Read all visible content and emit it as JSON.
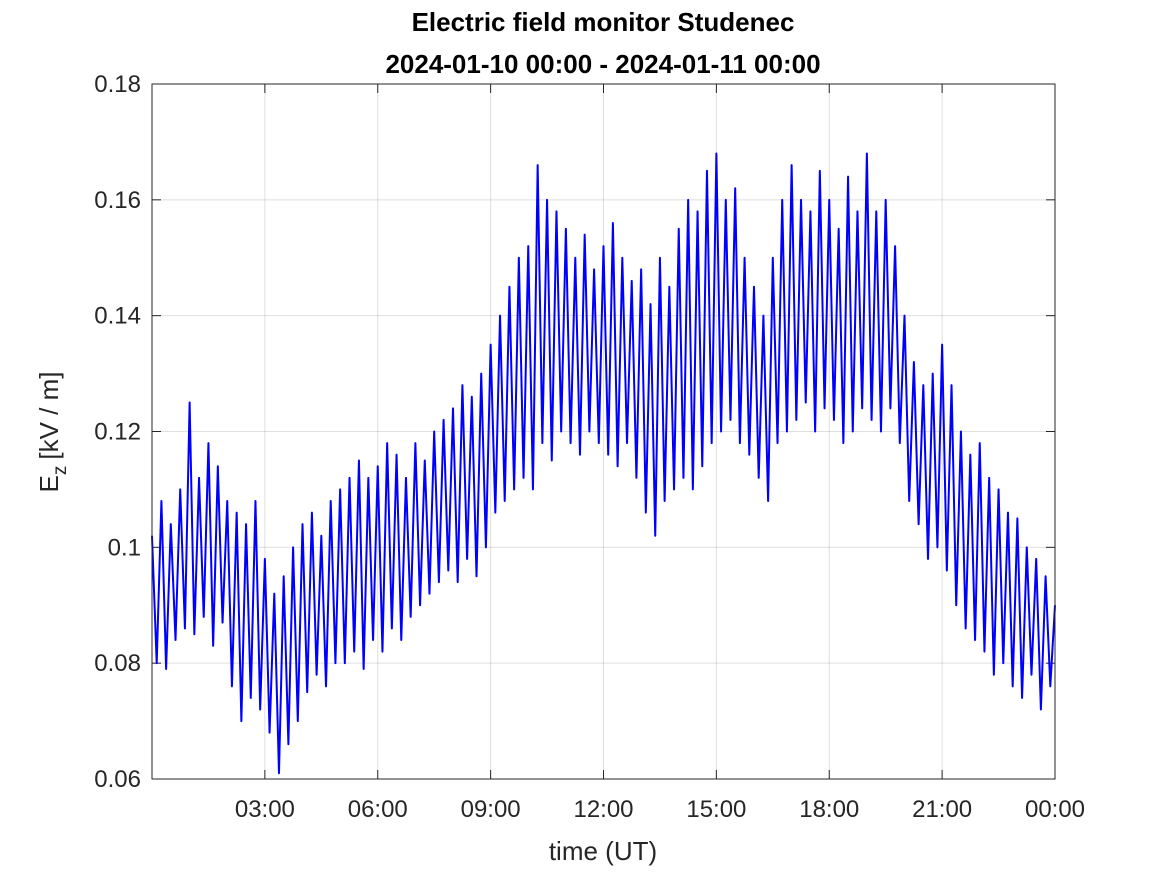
{
  "chart_data": {
    "type": "line",
    "title": [
      "Electric field monitor Studenec",
      "2024-01-10 00:00 - 2024-01-11 00:00"
    ],
    "xlabel": "time (UT)",
    "ylabel": {
      "symbol": "E",
      "subscript": "z",
      "unit": "[kV / m]"
    },
    "color": "#0000ff",
    "grid": true,
    "xlim": [
      0,
      24
    ],
    "xticks": [
      {
        "value": 3,
        "label": "03:00"
      },
      {
        "value": 6,
        "label": "06:00"
      },
      {
        "value": 9,
        "label": "09:00"
      },
      {
        "value": 12,
        "label": "12:00"
      },
      {
        "value": 15,
        "label": "15:00"
      },
      {
        "value": 18,
        "label": "18:00"
      },
      {
        "value": 21,
        "label": "21:00"
      },
      {
        "value": 24,
        "label": "00:00"
      }
    ],
    "ylim": [
      0.06,
      0.18
    ],
    "yticks": [
      0.06,
      0.08,
      0.1,
      0.12,
      0.14,
      0.16,
      0.18
    ],
    "x": [
      0,
      0.125,
      0.25,
      0.375,
      0.5,
      0.625,
      0.75,
      0.875,
      1,
      1.125,
      1.25,
      1.375,
      1.5,
      1.625,
      1.75,
      1.875,
      2,
      2.125,
      2.25,
      2.375,
      2.5,
      2.625,
      2.75,
      2.875,
      3,
      3.125,
      3.25,
      3.375,
      3.5,
      3.625,
      3.75,
      3.875,
      4,
      4.125,
      4.25,
      4.375,
      4.5,
      4.625,
      4.75,
      4.875,
      5,
      5.125,
      5.25,
      5.375,
      5.5,
      5.625,
      5.75,
      5.875,
      6,
      6.125,
      6.25,
      6.375,
      6.5,
      6.625,
      6.75,
      6.875,
      7,
      7.125,
      7.25,
      7.375,
      7.5,
      7.625,
      7.75,
      7.875,
      8,
      8.125,
      8.25,
      8.375,
      8.5,
      8.625,
      8.75,
      8.875,
      9,
      9.125,
      9.25,
      9.375,
      9.5,
      9.625,
      9.75,
      9.875,
      10,
      10.125,
      10.25,
      10.375,
      10.5,
      10.625,
      10.75,
      10.875,
      11,
      11.125,
      11.25,
      11.375,
      11.5,
      11.625,
      11.75,
      11.875,
      12,
      12.125,
      12.25,
      12.375,
      12.5,
      12.625,
      12.75,
      12.875,
      13,
      13.125,
      13.25,
      13.375,
      13.5,
      13.625,
      13.75,
      13.875,
      14,
      14.125,
      14.25,
      14.375,
      14.5,
      14.625,
      14.75,
      14.875,
      15,
      15.125,
      15.25,
      15.375,
      15.5,
      15.625,
      15.75,
      15.875,
      16,
      16.125,
      16.25,
      16.375,
      16.5,
      16.625,
      16.75,
      16.875,
      17,
      17.125,
      17.25,
      17.375,
      17.5,
      17.625,
      17.75,
      17.875,
      18,
      18.125,
      18.25,
      18.375,
      18.5,
      18.625,
      18.75,
      18.875,
      19,
      19.125,
      19.25,
      19.375,
      19.5,
      19.625,
      19.75,
      19.875,
      20,
      20.125,
      20.25,
      20.375,
      20.5,
      20.625,
      20.75,
      20.875,
      21,
      21.125,
      21.25,
      21.375,
      21.5,
      21.625,
      21.75,
      21.875,
      22,
      22.125,
      22.25,
      22.375,
      22.5,
      22.625,
      22.75,
      22.875,
      23,
      23.125,
      23.25,
      23.375,
      23.5,
      23.625,
      23.75,
      23.875,
      24
    ],
    "values": [
      0.102,
      0.08,
      0.108,
      0.079,
      0.104,
      0.084,
      0.11,
      0.086,
      0.125,
      0.085,
      0.112,
      0.088,
      0.118,
      0.083,
      0.114,
      0.087,
      0.108,
      0.076,
      0.106,
      0.07,
      0.104,
      0.074,
      0.108,
      0.072,
      0.098,
      0.068,
      0.092,
      0.061,
      0.095,
      0.066,
      0.1,
      0.07,
      0.104,
      0.075,
      0.106,
      0.078,
      0.102,
      0.076,
      0.108,
      0.08,
      0.11,
      0.08,
      0.112,
      0.082,
      0.115,
      0.079,
      0.112,
      0.084,
      0.114,
      0.082,
      0.118,
      0.086,
      0.116,
      0.084,
      0.112,
      0.088,
      0.118,
      0.09,
      0.115,
      0.092,
      0.12,
      0.094,
      0.122,
      0.096,
      0.124,
      0.094,
      0.128,
      0.098,
      0.126,
      0.095,
      0.13,
      0.1,
      0.135,
      0.106,
      0.14,
      0.108,
      0.145,
      0.11,
      0.15,
      0.112,
      0.152,
      0.11,
      0.166,
      0.118,
      0.16,
      0.115,
      0.158,
      0.12,
      0.155,
      0.118,
      0.15,
      0.116,
      0.154,
      0.12,
      0.148,
      0.118,
      0.152,
      0.116,
      0.156,
      0.114,
      0.15,
      0.118,
      0.146,
      0.112,
      0.148,
      0.106,
      0.142,
      0.102,
      0.15,
      0.108,
      0.145,
      0.11,
      0.155,
      0.112,
      0.16,
      0.11,
      0.158,
      0.114,
      0.165,
      0.118,
      0.168,
      0.12,
      0.16,
      0.122,
      0.162,
      0.118,
      0.15,
      0.116,
      0.145,
      0.112,
      0.14,
      0.108,
      0.15,
      0.118,
      0.16,
      0.12,
      0.166,
      0.122,
      0.16,
      0.125,
      0.158,
      0.12,
      0.165,
      0.124,
      0.16,
      0.122,
      0.155,
      0.118,
      0.164,
      0.12,
      0.158,
      0.124,
      0.168,
      0.122,
      0.158,
      0.12,
      0.16,
      0.124,
      0.152,
      0.118,
      0.14,
      0.108,
      0.132,
      0.104,
      0.128,
      0.098,
      0.13,
      0.1,
      0.135,
      0.096,
      0.128,
      0.09,
      0.12,
      0.086,
      0.116,
      0.084,
      0.118,
      0.082,
      0.112,
      0.078,
      0.11,
      0.08,
      0.106,
      0.076,
      0.105,
      0.074,
      0.1,
      0.078,
      0.098,
      0.072,
      0.095,
      0.076,
      0.09
    ]
  }
}
